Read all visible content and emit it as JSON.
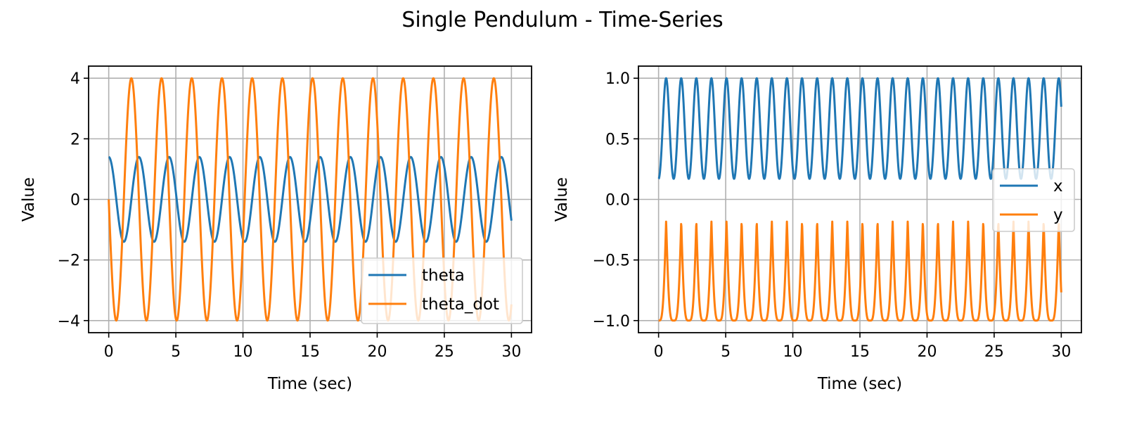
{
  "figure": {
    "title": "Single Pendulum - Time-Series"
  },
  "colors": {
    "series1": "#1f77b4",
    "series2": "#ff7f0e",
    "grid": "#b0b0b0",
    "axes": "#000000",
    "legend_border": "#cccccc"
  },
  "chart_data": [
    {
      "type": "line",
      "xlabel": "Time (sec)",
      "ylabel": "Value",
      "xlim": [
        -1.5,
        31.5
      ],
      "ylim": [
        -4.4,
        4.4
      ],
      "xticks": [
        0,
        5,
        10,
        15,
        20,
        25,
        30
      ],
      "xtick_labels": [
        "0",
        "5",
        "10",
        "15",
        "20",
        "25",
        "30"
      ],
      "yticks": [
        -4,
        -2,
        0,
        2,
        4
      ],
      "ytick_labels": [
        "−4",
        "−2",
        "0",
        "2",
        "4"
      ],
      "grid": true,
      "legend_position": "lower right",
      "series": [
        {
          "name": "theta",
          "model": "cos",
          "amplitude": 1.4,
          "period": 2.25,
          "color": "#1f77b4"
        },
        {
          "name": "theta_dot",
          "model": "negsin",
          "amplitude": 4.0,
          "period": 2.25,
          "color": "#ff7f0e"
        }
      ],
      "x_range": [
        0,
        30
      ]
    },
    {
      "type": "line",
      "xlabel": "Time (sec)",
      "ylabel": "Value",
      "xlim": [
        -1.5,
        31.5
      ],
      "ylim": [
        -1.1,
        1.1
      ],
      "xticks": [
        0,
        5,
        10,
        15,
        20,
        25,
        30
      ],
      "xtick_labels": [
        "0",
        "5",
        "10",
        "15",
        "20",
        "25",
        "30"
      ],
      "yticks": [
        -1.0,
        -0.5,
        0.0,
        0.5,
        1.0
      ],
      "ytick_labels": [
        "−1.0",
        "−0.5",
        "0.0",
        "0.5",
        "1.0"
      ],
      "grid": true,
      "legend_position": "center right",
      "series": [
        {
          "name": "x",
          "model": "cos_of_theta",
          "amplitude": 1.4,
          "period": 2.25,
          "color": "#1f77b4"
        },
        {
          "name": "y",
          "model": "neg_sin_of_theta_abs",
          "amplitude": 1.4,
          "period": 2.25,
          "color": "#ff7f0e"
        }
      ],
      "x_range": [
        0,
        30
      ]
    }
  ]
}
